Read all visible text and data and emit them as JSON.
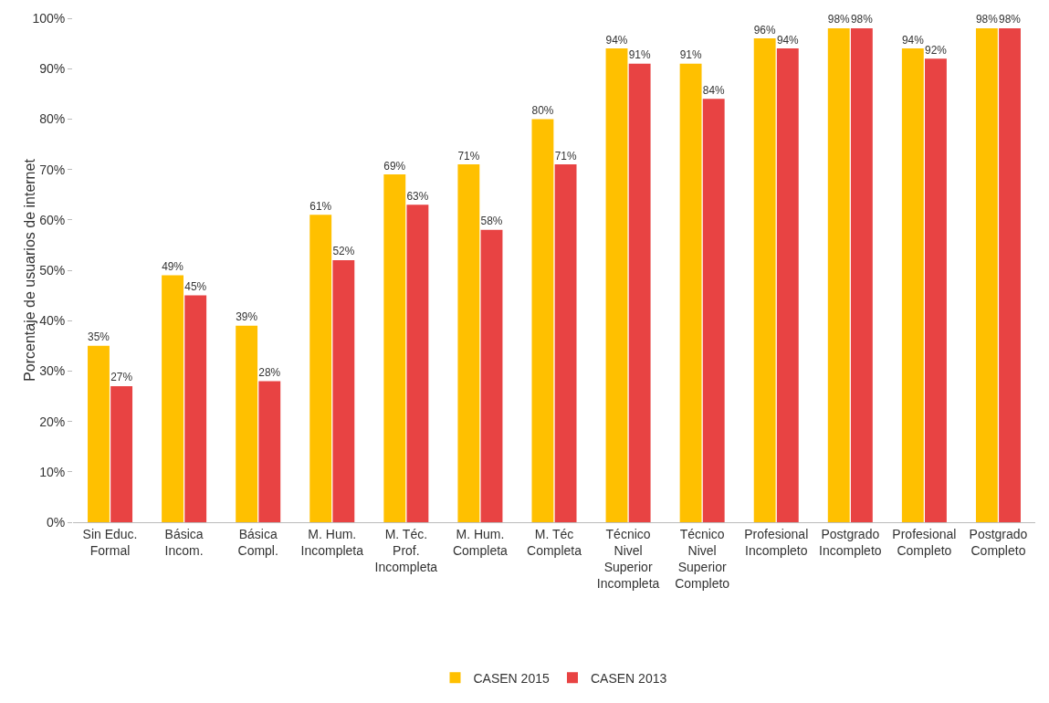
{
  "chart_data": {
    "type": "bar",
    "ylabel": "Porcentaje de usuarios de internet",
    "categories": [
      "Sin Educ.\nFormal",
      "Básica\nIncom.",
      "Básica\nCompl.",
      "M. Hum.\nIncompleta",
      "M. Téc.\nProf.\nIncompleta",
      "M. Hum.\nCompleta",
      "M. Téc\nCompleta",
      "Técnico\nNivel\nSuperior\nIncompleta",
      "Técnico\nNivel\nSuperior\nCompleto",
      "Profesional\nIncompleto",
      "Postgrado\nIncompleto",
      "Profesional\nCompleto",
      "Postgrado\nCompleto"
    ],
    "series": [
      {
        "name": "CASEN 2015",
        "color": "#ffc000",
        "values": [
          35,
          49,
          39,
          61,
          69,
          71,
          80,
          94,
          91,
          96,
          98,
          94,
          98
        ],
        "value_labels": [
          "35%",
          "49%",
          "39%",
          "61%",
          "69%",
          "71%",
          "80%",
          "94%",
          "91%",
          "96%",
          "98%",
          "94%",
          "98%"
        ]
      },
      {
        "name": "CASEN 2013",
        "color": "#e84343",
        "values": [
          27,
          45,
          28,
          52,
          63,
          58,
          71,
          91,
          84,
          94,
          98,
          92,
          98
        ],
        "value_labels": [
          "27%",
          "45%",
          "28%",
          "52%",
          "63%",
          "58%",
          "71%",
          "91%",
          "84%",
          "94%",
          "98%",
          "92%",
          "98%"
        ]
      }
    ],
    "ylim": [
      0,
      100
    ],
    "yticks": [
      {
        "value": 0,
        "label": "0%"
      },
      {
        "value": 10,
        "label": "10%"
      },
      {
        "value": 20,
        "label": "20%"
      },
      {
        "value": 30,
        "label": "30%"
      },
      {
        "value": 40,
        "label": "40%"
      },
      {
        "value": 50,
        "label": "50%"
      },
      {
        "value": 60,
        "label": "60%"
      },
      {
        "value": 70,
        "label": "70%"
      },
      {
        "value": 80,
        "label": "80%"
      },
      {
        "value": 90,
        "label": "90%"
      },
      {
        "value": 100,
        "label": "100%"
      }
    ],
    "grid": false,
    "legend": "bottom"
  }
}
